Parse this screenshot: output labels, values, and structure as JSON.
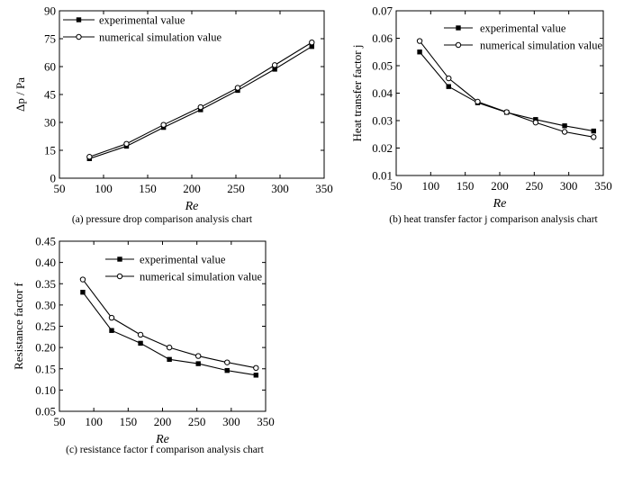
{
  "chart_data": [
    {
      "type": "line",
      "caption": "(a) pressure drop comparison analysis chart",
      "xlabel": "Re",
      "ylabel": "Δp / Pa",
      "xlim": [
        50,
        350
      ],
      "ylim": [
        0,
        90
      ],
      "xticks": [
        "50",
        "100",
        "150",
        "200",
        "250",
        "300",
        "350"
      ],
      "yticks": [
        "0",
        "15",
        "30",
        "45",
        "60",
        "75",
        "90"
      ],
      "x": [
        84,
        126,
        168,
        210,
        252,
        294,
        336
      ],
      "series": [
        {
          "name": "experimental value",
          "marker": "filled-square",
          "values": [
            10.5,
            17.2,
            27.3,
            36.8,
            47.2,
            58.6,
            70.8
          ]
        },
        {
          "name": "numerical simulation value",
          "marker": "open-circle",
          "values": [
            11.5,
            18.5,
            28.7,
            38.2,
            48.6,
            60.8,
            73.0
          ]
        }
      ],
      "legend_position": "top-left"
    },
    {
      "type": "line",
      "caption": "(b) heat transfer factor j comparison analysis chart",
      "xlabel": "Re",
      "ylabel": "Heat transfer factor j",
      "xlim": [
        50,
        350
      ],
      "ylim": [
        0.01,
        0.07
      ],
      "xticks": [
        "50",
        "100",
        "150",
        "200",
        "250",
        "300",
        "350"
      ],
      "yticks": [
        "0.01",
        "0.02",
        "0.03",
        "0.04",
        "0.05",
        "0.06",
        "0.07"
      ],
      "x": [
        84,
        126,
        168,
        210,
        252,
        294,
        336
      ],
      "series": [
        {
          "name": "experimental value",
          "marker": "filled-square",
          "values": [
            0.055,
            0.0424,
            0.0365,
            0.033,
            0.0304,
            0.0281,
            0.0262
          ]
        },
        {
          "name": "numerical simulation value",
          "marker": "open-circle",
          "values": [
            0.059,
            0.0454,
            0.0369,
            0.0331,
            0.0293,
            0.0259,
            0.024
          ]
        }
      ],
      "legend_position": "top-right"
    },
    {
      "type": "line",
      "caption": "(c) resistance factor f comparison analysis chart",
      "xlabel": "Re",
      "ylabel": "Resistance factor f",
      "xlim": [
        50,
        350
      ],
      "ylim": [
        0.05,
        0.45
      ],
      "xticks": [
        "50",
        "100",
        "150",
        "200",
        "250",
        "300",
        "350"
      ],
      "yticks": [
        "0.05",
        "0.10",
        "0.15",
        "0.20",
        "0.25",
        "0.30",
        "0.35",
        "0.40",
        "0.45"
      ],
      "x": [
        84,
        126,
        168,
        210,
        252,
        294,
        336
      ],
      "series": [
        {
          "name": "experimental value",
          "marker": "filled-square",
          "values": [
            0.33,
            0.24,
            0.21,
            0.172,
            0.162,
            0.146,
            0.135
          ]
        },
        {
          "name": "numerical simulation value",
          "marker": "open-circle",
          "values": [
            0.36,
            0.27,
            0.23,
            0.2,
            0.18,
            0.165,
            0.152
          ]
        }
      ],
      "legend_position": "top-right"
    }
  ]
}
